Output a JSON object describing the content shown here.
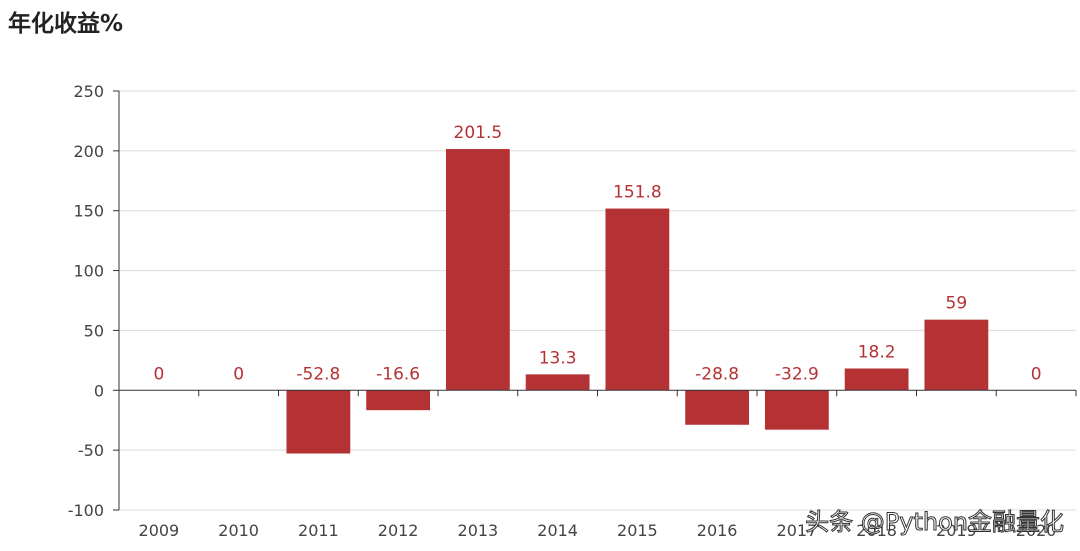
{
  "chart_data": {
    "type": "bar",
    "title": "年化收益%",
    "categories": [
      "2009",
      "2010",
      "2011",
      "2012",
      "2013",
      "2014",
      "2015",
      "2016",
      "2017",
      "2018",
      "2019",
      "2020"
    ],
    "series": [
      {
        "values": [
          0,
          0,
          -52.8,
          -16.6,
          201.5,
          13.3,
          151.8,
          -28.8,
          -32.9,
          18.2,
          59,
          0
        ]
      }
    ],
    "data_labels": [
      "0",
      "0",
      "-52.8",
      "-16.6",
      "201.5",
      "13.3",
      "151.8",
      "-28.8",
      "-32.9",
      "18.2",
      "59",
      "0"
    ],
    "ylim": [
      -100,
      250
    ],
    "yticks": [
      -100,
      -50,
      0,
      50,
      100,
      150,
      200,
      250
    ],
    "grid": true,
    "bar_color": "#b53234",
    "label_color": "#b53234"
  },
  "watermark": "头条 @Python金融量化"
}
